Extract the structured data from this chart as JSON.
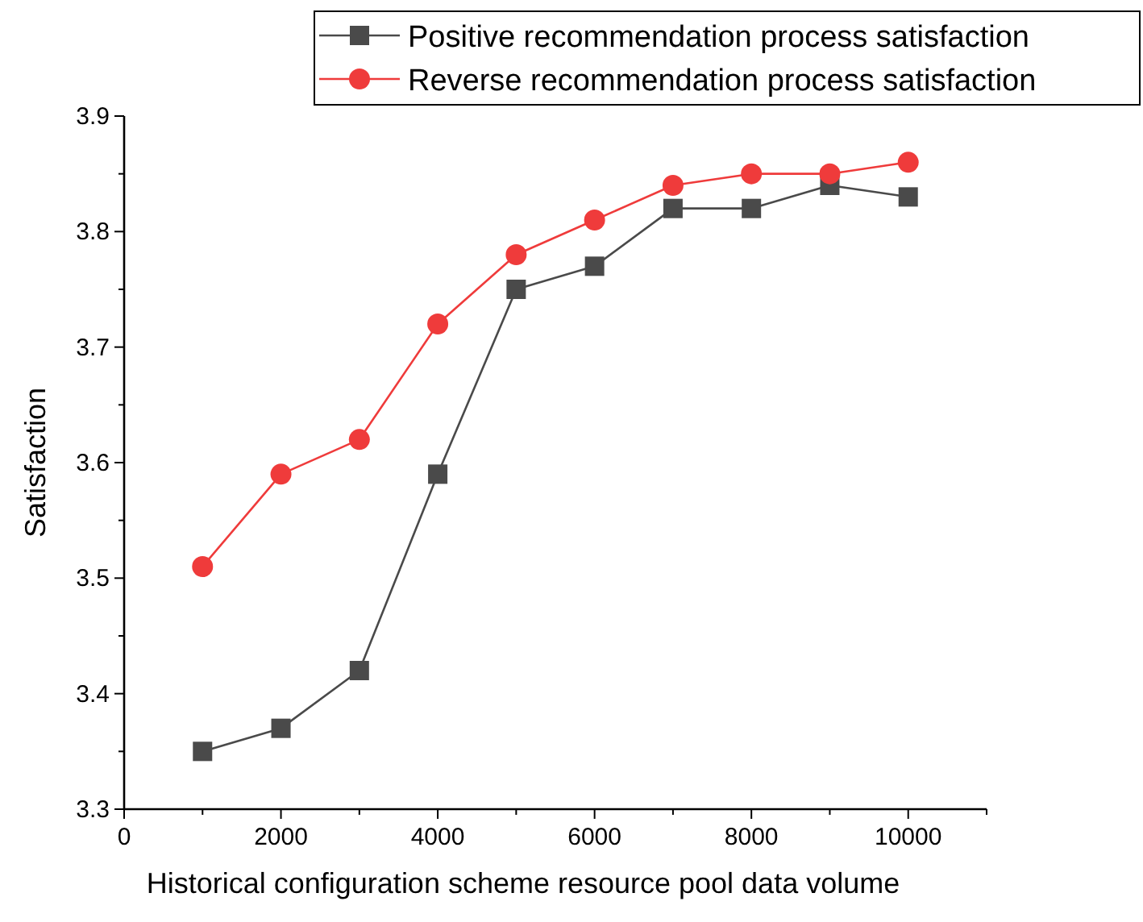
{
  "chart_data": {
    "type": "line",
    "xlabel": "Historical configuration scheme resource pool data volume",
    "ylabel": "Satisfaction",
    "x": [
      1000,
      2000,
      3000,
      4000,
      5000,
      6000,
      7000,
      8000,
      9000,
      10000
    ],
    "series": [
      {
        "name": "Positive recommendation process satisfaction",
        "color": "#4a4a4a",
        "marker": "square",
        "values": [
          3.35,
          3.37,
          3.42,
          3.59,
          3.75,
          3.77,
          3.82,
          3.82,
          3.84,
          3.83
        ]
      },
      {
        "name": "Reverse recommendation process satisfaction",
        "color": "#ef3b3b",
        "marker": "circle",
        "values": [
          3.51,
          3.59,
          3.62,
          3.72,
          3.78,
          3.81,
          3.84,
          3.85,
          3.85,
          3.86
        ]
      }
    ],
    "xlim": [
      0,
      11000
    ],
    "xticks": [
      0,
      2000,
      4000,
      6000,
      8000,
      10000
    ],
    "ylim": [
      3.3,
      3.9
    ],
    "yticks": [
      3.3,
      3.4,
      3.5,
      3.6,
      3.7,
      3.8,
      3.9
    ],
    "grid": false,
    "legend": "top right"
  }
}
